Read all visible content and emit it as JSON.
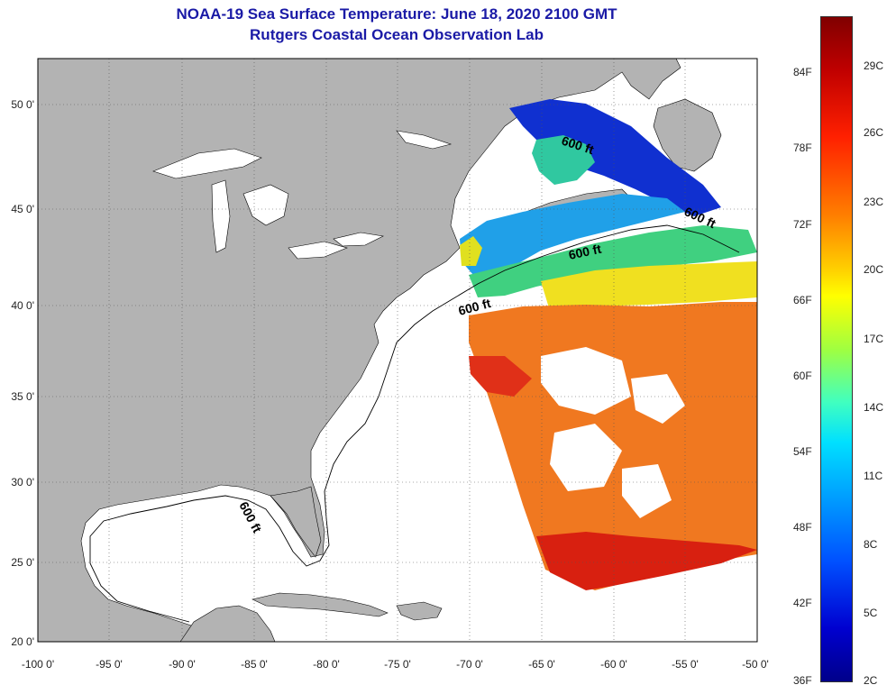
{
  "title": {
    "line1": "NOAA-19 Sea Surface Temperature:  June 18, 2020 2100 GMT",
    "line2": "Rutgers Coastal Ocean Observation Lab"
  },
  "map": {
    "lat_labels": [
      "50 0'",
      "45 0'",
      "40 0'",
      "35 0'",
      "30 0'",
      "25 0'",
      "20 0'"
    ],
    "lon_labels": [
      "-100 0'",
      "-95 0'",
      "-90 0'",
      "-85 0'",
      "-80 0'",
      "-75 0'",
      "-70 0'",
      "-65 0'",
      "-60 0'",
      "-55 0'",
      "-50 0'"
    ],
    "isobath_labels": [
      "600 ft",
      "600 ft",
      "600 ft",
      "600 ft",
      "600 ft"
    ]
  },
  "colorbar": {
    "fahrenheit_labels": [
      "84F",
      "78F",
      "72F",
      "66F",
      "60F",
      "54F",
      "48F",
      "42F",
      "36F"
    ],
    "celsius_labels": [
      "29C",
      "26C",
      "23C",
      "20C",
      "17C",
      "14C",
      "11C",
      "8C",
      "5C",
      "2C"
    ]
  },
  "colors": {
    "land": "#b3b3b3",
    "title": "#1a1aa6",
    "no_data": "#ffffff"
  }
}
